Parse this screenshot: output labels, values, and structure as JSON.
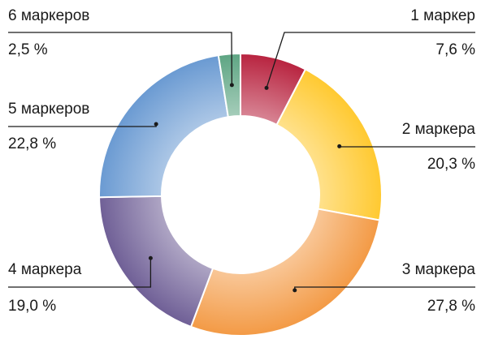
{
  "chart_data": {
    "type": "donut",
    "categories": [
      "1 маркер",
      "2 маркера",
      "3 маркера",
      "4 маркера",
      "5 маркеров",
      "6 маркеров"
    ],
    "values": [
      7.6,
      20.3,
      27.8,
      19.0,
      22.8,
      2.5
    ],
    "value_labels": [
      "7,6 %",
      "20,3 %",
      "27,8 %",
      "19,0 %",
      "22,8 %",
      "2,5 %"
    ],
    "colors": [
      "#b8233f",
      "#ffc930",
      "#f39a45",
      "#6f5f96",
      "#6a9ad2",
      "#5ea583"
    ]
  }
}
